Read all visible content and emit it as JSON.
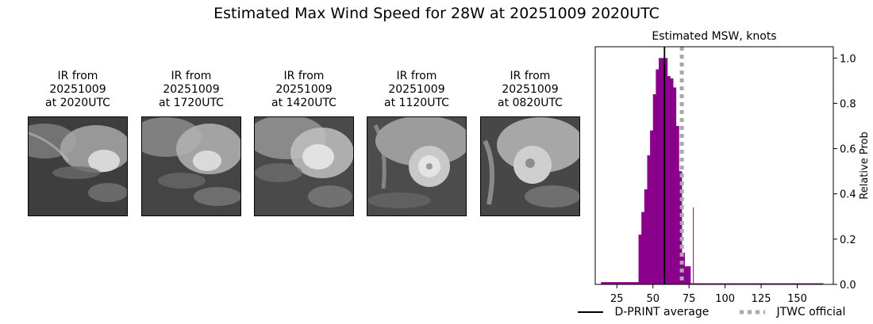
{
  "title": "Estimated Max Wind Speed for 28W at 20251009 2020UTC",
  "ir_panels": [
    {
      "line1": "IR from",
      "line2": "20251009",
      "line3": "at 2020UTC"
    },
    {
      "line1": "IR from",
      "line2": "20251009",
      "line3": "at 1720UTC"
    },
    {
      "line1": "IR from",
      "line2": "20251009",
      "line3": "at 1420UTC"
    },
    {
      "line1": "IR from",
      "line2": "20251009",
      "line3": "at 1120UTC"
    },
    {
      "line1": "IR from",
      "line2": "20251009",
      "line3": "at 0820UTC"
    }
  ],
  "colors": {
    "bars": "#8b008b",
    "dprint_line": "#000000",
    "jtwc_line": "#a9a9a9"
  },
  "chart_data": {
    "type": "bar",
    "title": "Estimated MSW, knots",
    "xlabel": "",
    "ylabel": "Relative Prob",
    "xlim": [
      10,
      175
    ],
    "ylim": [
      0,
      1.05
    ],
    "xticks": [
      25,
      50,
      75,
      100,
      125,
      150
    ],
    "yticks": [
      0.0,
      0.2,
      0.4,
      0.6,
      0.8,
      1.0
    ],
    "ytick_labels": [
      "0.0",
      "0.2",
      "0.4",
      "0.6",
      "0.8",
      "1.0"
    ],
    "y_axis_side": "right",
    "bin_width": 2,
    "bins": [
      {
        "x": 15,
        "y": 0.01
      },
      {
        "x": 17,
        "y": 0.01
      },
      {
        "x": 19,
        "y": 0.01
      },
      {
        "x": 21,
        "y": 0.01
      },
      {
        "x": 23,
        "y": 0.01
      },
      {
        "x": 25,
        "y": 0.01
      },
      {
        "x": 27,
        "y": 0.01
      },
      {
        "x": 29,
        "y": 0.01
      },
      {
        "x": 31,
        "y": 0.01
      },
      {
        "x": 33,
        "y": 0.01
      },
      {
        "x": 35,
        "y": 0.01
      },
      {
        "x": 37,
        "y": 0.01
      },
      {
        "x": 39,
        "y": 0.01
      },
      {
        "x": 41,
        "y": 0.22
      },
      {
        "x": 43,
        "y": 0.32
      },
      {
        "x": 45,
        "y": 0.42
      },
      {
        "x": 47,
        "y": 0.57
      },
      {
        "x": 49,
        "y": 0.68
      },
      {
        "x": 51,
        "y": 0.84
      },
      {
        "x": 53,
        "y": 0.95
      },
      {
        "x": 55,
        "y": 1.0
      },
      {
        "x": 57,
        "y": 1.0
      },
      {
        "x": 59,
        "y": 1.0
      },
      {
        "x": 61,
        "y": 0.92
      },
      {
        "x": 63,
        "y": 0.91
      },
      {
        "x": 65,
        "y": 0.87
      },
      {
        "x": 67,
        "y": 0.7
      },
      {
        "x": 69,
        "y": 0.5
      },
      {
        "x": 71,
        "y": 0.14
      },
      {
        "x": 73,
        "y": 0.08
      },
      {
        "x": 75,
        "y": 0.08
      },
      {
        "x": 77,
        "y": 0.005
      },
      {
        "x": 79,
        "y": 0.005
      },
      {
        "x": 81,
        "y": 0.005
      },
      {
        "x": 83,
        "y": 0.005
      },
      {
        "x": 85,
        "y": 0.005
      },
      {
        "x": 87,
        "y": 0.005
      },
      {
        "x": 89,
        "y": 0.005
      },
      {
        "x": 91,
        "y": 0.005
      },
      {
        "x": 93,
        "y": 0.005
      },
      {
        "x": 95,
        "y": 0.005
      },
      {
        "x": 97,
        "y": 0.005
      },
      {
        "x": 99,
        "y": 0.005
      },
      {
        "x": 101,
        "y": 0.005
      },
      {
        "x": 103,
        "y": 0.005
      },
      {
        "x": 105,
        "y": 0.005
      },
      {
        "x": 107,
        "y": 0.005
      },
      {
        "x": 109,
        "y": 0.005
      },
      {
        "x": 111,
        "y": 0.005
      },
      {
        "x": 113,
        "y": 0.005
      },
      {
        "x": 115,
        "y": 0.005
      },
      {
        "x": 117,
        "y": 0.005
      },
      {
        "x": 119,
        "y": 0.005
      },
      {
        "x": 121,
        "y": 0.005
      },
      {
        "x": 123,
        "y": 0.005
      },
      {
        "x": 125,
        "y": 0.005
      },
      {
        "x": 127,
        "y": 0.005
      },
      {
        "x": 129,
        "y": 0.005
      },
      {
        "x": 131,
        "y": 0.005
      },
      {
        "x": 133,
        "y": 0.005
      },
      {
        "x": 135,
        "y": 0.005
      },
      {
        "x": 137,
        "y": 0.005
      },
      {
        "x": 139,
        "y": 0.005
      },
      {
        "x": 141,
        "y": 0.005
      },
      {
        "x": 143,
        "y": 0.005
      },
      {
        "x": 145,
        "y": 0.005
      },
      {
        "x": 147,
        "y": 0.005
      },
      {
        "x": 149,
        "y": 0.005
      },
      {
        "x": 151,
        "y": 0.005
      },
      {
        "x": 153,
        "y": 0.005
      },
      {
        "x": 155,
        "y": 0.005
      },
      {
        "x": 157,
        "y": 0.005
      },
      {
        "x": 159,
        "y": 0.005
      },
      {
        "x": 161,
        "y": 0.005
      },
      {
        "x": 163,
        "y": 0.005
      },
      {
        "x": 165,
        "y": 0.005
      },
      {
        "x": 167,
        "y": 0.005
      }
    ],
    "spike": {
      "x": 78,
      "y": 0.34
    },
    "vlines": [
      {
        "name": "D-PRINT average",
        "x": 58,
        "style": "solid"
      },
      {
        "name": "JTWC official",
        "x": 70,
        "style": "dotted"
      }
    ],
    "legend": [
      "D-PRINT average",
      "JTWC official"
    ],
    "legend_placement": "bottom-right"
  }
}
